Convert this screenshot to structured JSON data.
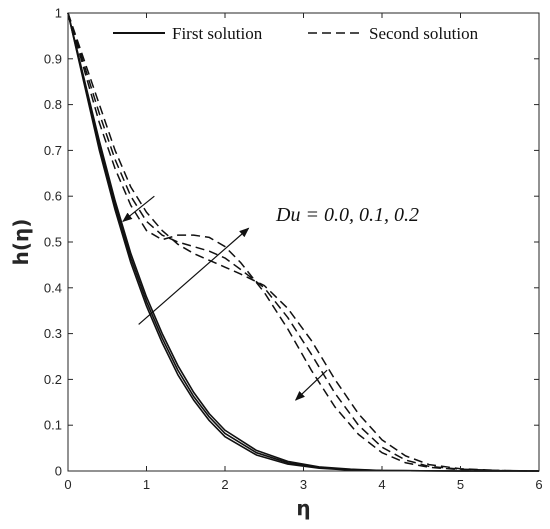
{
  "chart_data": {
    "type": "line",
    "xlabel": "η",
    "ylabel": "h(η)",
    "xlim": [
      0,
      6
    ],
    "ylim": [
      0,
      1
    ],
    "xticks": [
      "0",
      "1",
      "2",
      "3",
      "4",
      "5",
      "6"
    ],
    "yticks": [
      "0",
      "0.1",
      "0.2",
      "0.3",
      "0.4",
      "0.5",
      "0.6",
      "0.7",
      "0.8",
      "0.9",
      "1"
    ],
    "grid": false,
    "legend_position": "top",
    "legend": [
      {
        "label": "First solution",
        "style": "solid"
      },
      {
        "label": "Second solution",
        "style": "dashed"
      }
    ],
    "annotation": "Du = 0.0, 0.1, 0.2",
    "series": [
      {
        "solution": "first",
        "style": "solid",
        "x": [
          0,
          0.2,
          0.4,
          0.6,
          0.8,
          1.0,
          1.2,
          1.4,
          1.6,
          1.8,
          2.0,
          2.4,
          2.8,
          3.2,
          3.6,
          4.0,
          5.0,
          6.0
        ],
        "y": [
          1.0,
          0.85,
          0.7,
          0.57,
          0.455,
          0.36,
          0.28,
          0.21,
          0.155,
          0.11,
          0.075,
          0.035,
          0.015,
          0.006,
          0.002,
          0.001,
          0.0,
          0.0
        ]
      },
      {
        "solution": "first",
        "style": "solid",
        "x": [
          0,
          0.2,
          0.4,
          0.6,
          0.8,
          1.0,
          1.2,
          1.4,
          1.6,
          1.8,
          2.0,
          2.4,
          2.8,
          3.2,
          3.6,
          4.0,
          5.0,
          6.0
        ],
        "y": [
          1.0,
          0.855,
          0.71,
          0.58,
          0.465,
          0.37,
          0.29,
          0.22,
          0.163,
          0.118,
          0.082,
          0.04,
          0.018,
          0.007,
          0.003,
          0.001,
          0.0,
          0.0
        ]
      },
      {
        "solution": "first",
        "style": "solid",
        "x": [
          0,
          0.2,
          0.4,
          0.6,
          0.8,
          1.0,
          1.2,
          1.4,
          1.6,
          1.8,
          2.0,
          2.4,
          2.8,
          3.2,
          3.6,
          4.0,
          5.0,
          6.0
        ],
        "y": [
          1.0,
          0.86,
          0.72,
          0.59,
          0.475,
          0.38,
          0.3,
          0.23,
          0.172,
          0.125,
          0.089,
          0.045,
          0.021,
          0.009,
          0.004,
          0.001,
          0.0,
          0.0
        ]
      },
      {
        "solution": "second",
        "style": "dashed",
        "x": [
          0,
          0.2,
          0.4,
          0.6,
          0.8,
          1.0,
          1.2,
          1.4,
          1.6,
          1.8,
          2.0,
          2.2,
          2.5,
          2.8,
          3.1,
          3.4,
          3.7,
          4.0,
          4.3,
          4.6,
          5.0,
          5.5,
          6.0
        ],
        "y": [
          1.0,
          0.88,
          0.76,
          0.66,
          0.58,
          0.525,
          0.505,
          0.515,
          0.515,
          0.51,
          0.49,
          0.455,
          0.39,
          0.31,
          0.22,
          0.14,
          0.08,
          0.04,
          0.018,
          0.008,
          0.003,
          0.001,
          0.0
        ]
      },
      {
        "solution": "second",
        "style": "dashed",
        "x": [
          0,
          0.2,
          0.4,
          0.6,
          0.8,
          1.0,
          1.2,
          1.4,
          1.6,
          1.8,
          2.0,
          2.2,
          2.5,
          2.8,
          3.1,
          3.4,
          3.7,
          4.0,
          4.3,
          4.6,
          5.0,
          5.5,
          6.0
        ],
        "y": [
          1.0,
          0.89,
          0.78,
          0.68,
          0.6,
          0.545,
          0.515,
          0.5,
          0.49,
          0.48,
          0.465,
          0.44,
          0.4,
          0.335,
          0.255,
          0.17,
          0.1,
          0.052,
          0.024,
          0.01,
          0.004,
          0.001,
          0.0
        ]
      },
      {
        "solution": "second",
        "style": "dashed",
        "x": [
          0,
          0.2,
          0.4,
          0.6,
          0.8,
          1.0,
          1.2,
          1.4,
          1.6,
          1.8,
          2.0,
          2.2,
          2.5,
          2.8,
          3.1,
          3.4,
          3.7,
          4.0,
          4.3,
          4.6,
          5.0,
          5.5,
          6.0
        ],
        "y": [
          1.0,
          0.9,
          0.8,
          0.7,
          0.62,
          0.565,
          0.525,
          0.495,
          0.475,
          0.46,
          0.445,
          0.43,
          0.405,
          0.355,
          0.285,
          0.2,
          0.125,
          0.068,
          0.033,
          0.014,
          0.005,
          0.001,
          0.0
        ]
      }
    ],
    "arrows": [
      {
        "from": [
          1.1,
          0.6
        ],
        "to": [
          0.7,
          0.545
        ]
      },
      {
        "from": [
          0.9,
          0.32
        ],
        "to": [
          2.3,
          0.53
        ]
      },
      {
        "from": [
          3.3,
          0.22
        ],
        "to": [
          2.9,
          0.155
        ]
      }
    ]
  }
}
